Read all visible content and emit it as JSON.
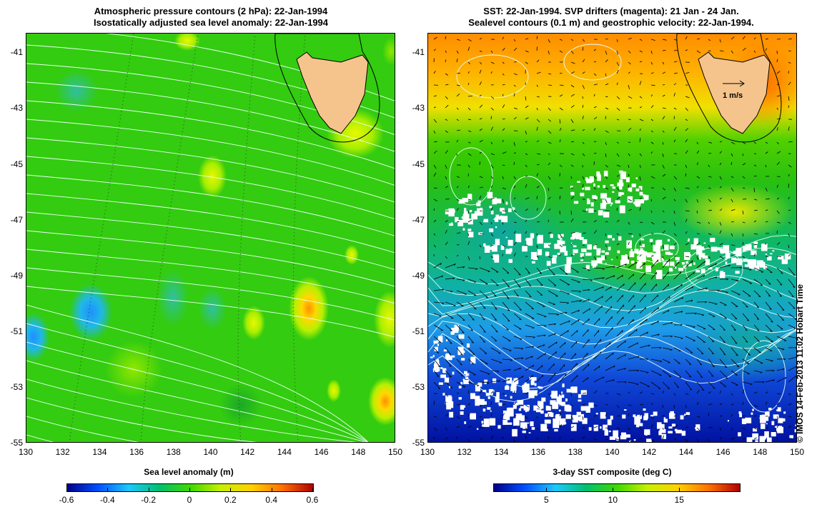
{
  "left_panel": {
    "title_line1": "Atmospheric pressure contours (2 hPa): 22-Jan-1994",
    "title_line2": "Isostatically adjusted sea level anomaly: 22-Jan-1994",
    "colorbar": {
      "label": "Sea level anomaly (m)",
      "ticks": [
        "-0.6",
        "-0.4",
        "-0.2",
        "0",
        "0.2",
        "0.4",
        "0.6"
      ],
      "range": [
        -0.6,
        0.6
      ],
      "colors": [
        "#00008b",
        "#0050ff",
        "#1ec8ff",
        "#00c070",
        "#40d800",
        "#c8f000",
        "#ffd000",
        "#ff7000",
        "#b00000"
      ]
    }
  },
  "right_panel": {
    "title_line1": "SST: 22-Jan-1994. SVP drifters (magenta): 21 Jan - 24 Jan.",
    "title_line2": "Sealevel contours (0.1 m) and geostrophic velocity: 22-Jan-1994.",
    "velocity_scale_label": "1 m/s",
    "colorbar": {
      "label": "3-day SST composite (deg C)",
      "ticks": [
        "5",
        "10",
        "15"
      ],
      "range": [
        1,
        19.5
      ],
      "colors": [
        "#00008b",
        "#0050ff",
        "#1ec8ff",
        "#00c070",
        "#40d800",
        "#c8f000",
        "#ffd000",
        "#ff7000",
        "#b00000"
      ]
    }
  },
  "axes": {
    "x_ticks": [
      "130",
      "132",
      "134",
      "136",
      "138",
      "140",
      "142",
      "144",
      "146",
      "148",
      "150"
    ],
    "y_ticks": [
      "-41",
      "-43",
      "-45",
      "-47",
      "-49",
      "-51",
      "-53",
      "-55"
    ],
    "lon_range": [
      130,
      150
    ],
    "lat_range": [
      -55,
      -40.3
    ]
  },
  "credit": "© IMOS 14-Feb-2013 11:02 Hobart Time",
  "colors": {
    "land": "#f5c48c",
    "coast": "#000000",
    "contour": "#ffffff",
    "missing": "#ffffff"
  }
}
